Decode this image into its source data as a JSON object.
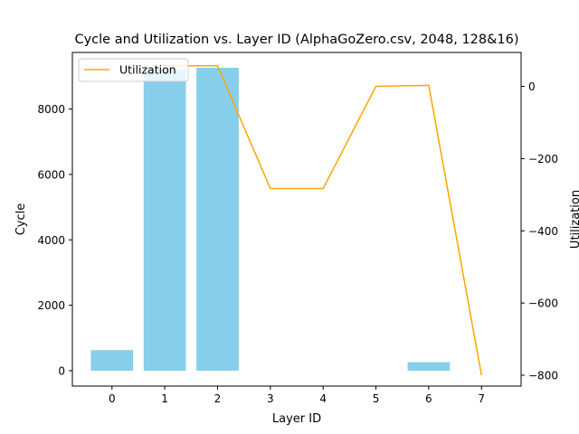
{
  "chart_data": {
    "type": "bar",
    "title": "Cycle and Utilization vs. Layer ID (AlphaGoZero.csv, 2048, 128&16)",
    "xlabel": "Layer ID",
    "ylabel": "Cycle",
    "y2label": "Utilization",
    "categories": [
      "0",
      "1",
      "2",
      "3",
      "4",
      "5",
      "6",
      "7"
    ],
    "x": [
      0,
      1,
      2,
      3,
      4,
      5,
      6,
      7
    ],
    "xlim": [
      -0.75,
      7.75
    ],
    "ylim": [
      -470,
      9730
    ],
    "y2lim": [
      -830,
      94
    ],
    "xticks": [
      0,
      1,
      2,
      3,
      4,
      5,
      6,
      7
    ],
    "yticks": [
      0,
      2000,
      4000,
      6000,
      8000
    ],
    "y2ticks": [
      0,
      -200,
      -400,
      -600,
      -800
    ],
    "grid": false,
    "legend": {
      "position": "upper-left"
    },
    "series": [
      {
        "kind": "bar",
        "axis": "left",
        "values": [
          630,
          9220,
          9260,
          0,
          0,
          0,
          260,
          0
        ],
        "color": "#87ceeb"
      },
      {
        "kind": "line",
        "axis": "right",
        "name": "Utilization",
        "values": [
          null,
          57,
          57,
          -283,
          -283,
          0,
          3,
          -800
        ],
        "color": "#ffa500"
      }
    ]
  }
}
